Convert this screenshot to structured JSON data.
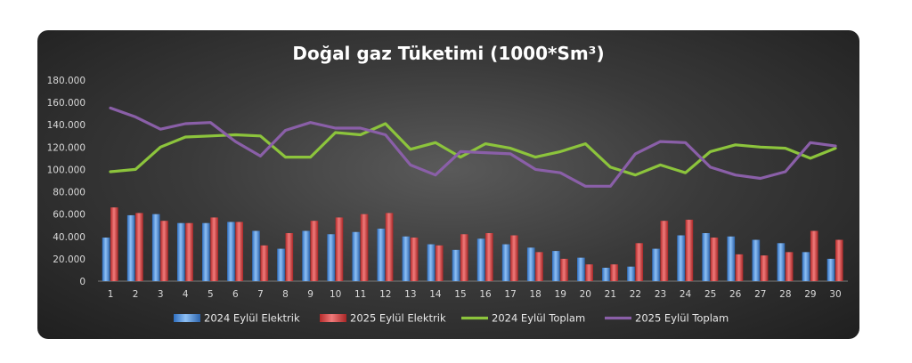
{
  "chart_data": {
    "type": "bar",
    "title": "Doğal gaz Tüketimi (1000*Sm³)",
    "xlabel": "",
    "ylabel": "",
    "ylim": [
      0,
      180000
    ],
    "y_ticks": [
      "0",
      "20.000",
      "40.000",
      "60.000",
      "80.000",
      "100.000",
      "120.000",
      "140.000",
      "160.000",
      "180.000"
    ],
    "categories": [
      "1",
      "2",
      "3",
      "4",
      "5",
      "6",
      "7",
      "8",
      "9",
      "10",
      "11",
      "12",
      "13",
      "14",
      "15",
      "16",
      "17",
      "18",
      "19",
      "20",
      "21",
      "22",
      "23",
      "24",
      "25",
      "26",
      "27",
      "28",
      "29",
      "30"
    ],
    "grid": false,
    "legend_position": "bottom",
    "series": [
      {
        "name": "2024 Eylül Elektrik",
        "kind": "bar",
        "color": "#4a90e2",
        "values": [
          39000,
          59000,
          60000,
          52000,
          52000,
          53000,
          45000,
          29000,
          45000,
          42000,
          44000,
          47000,
          40000,
          33000,
          28000,
          38000,
          33000,
          30000,
          27000,
          21000,
          12000,
          13000,
          29000,
          41000,
          43000,
          40000,
          37000,
          34000,
          26000,
          20000
        ]
      },
      {
        "name": "2025 Eylül Elektrik",
        "kind": "bar",
        "color": "#e04a4a",
        "values": [
          66000,
          61000,
          54000,
          52000,
          57000,
          53000,
          32000,
          43000,
          54000,
          57000,
          60000,
          61000,
          39000,
          32000,
          42000,
          43000,
          41000,
          26000,
          20000,
          15000,
          15000,
          34000,
          54000,
          55000,
          39000,
          24000,
          23000,
          26000,
          45000,
          37000
        ]
      },
      {
        "name": "2024 Eylül Toplam",
        "kind": "line",
        "color": "#8cc43c",
        "values": [
          98000,
          100000,
          120000,
          129000,
          130000,
          131000,
          130000,
          111000,
          111000,
          133000,
          131000,
          141000,
          118000,
          124000,
          111000,
          123000,
          119000,
          111000,
          116000,
          123000,
          102000,
          95000,
          104000,
          97000,
          116000,
          122000,
          120000,
          119000,
          110000,
          119000
        ]
      },
      {
        "name": "2025 Eylül Toplam",
        "kind": "line",
        "color": "#8a5fa8",
        "values": [
          155000,
          147000,
          136000,
          141000,
          142000,
          125000,
          112000,
          135000,
          142000,
          137000,
          137000,
          131000,
          104000,
          95000,
          116000,
          115000,
          114000,
          100000,
          97000,
          85000,
          85000,
          114000,
          125000,
          124000,
          102000,
          95000,
          92000,
          98000,
          124000,
          121000
        ]
      }
    ]
  }
}
